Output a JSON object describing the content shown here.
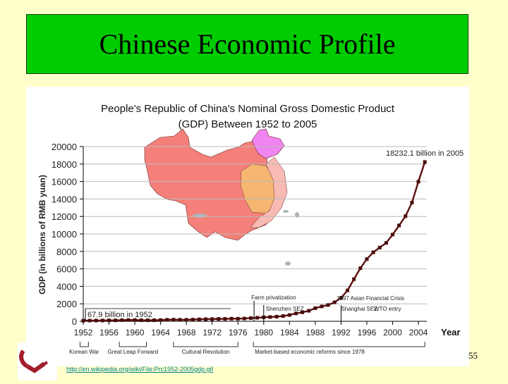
{
  "slide": {
    "title": "Chinese Economic Profile",
    "page_number": "55",
    "source_link": "http://en.wikipedia.org/wiki/File:Prc1952-2005gdp.gif",
    "colors": {
      "background": "#FFFFCC",
      "title_box": "#00CC00",
      "line": "#5a1010",
      "link": "#00808a"
    }
  },
  "chart": {
    "title_line1": "People's Republic of China's Nominal Gross Domestic Product",
    "title_line2": "(GDP) Between 1952 to 2005",
    "ylabel": "GDP (in billions of RMB yuan)",
    "xlabel": "Year",
    "y_ticks": [
      "20000",
      "18000",
      "16000",
      "14000",
      "12000",
      "10000",
      "8000",
      "6000",
      "4000",
      "2000",
      "0"
    ],
    "x_ticks": [
      "1952",
      "1956",
      "1960",
      "1964",
      "1968",
      "1972",
      "1976",
      "1980",
      "1984",
      "1988",
      "1992",
      "1996",
      "2000",
      "2004"
    ],
    "annotations": {
      "end_label": "18232.1 billion in 2005",
      "start_label": "67.9 billion in 1952",
      "farm": "Farm privatization",
      "shenzhen": "Shenzhen SEZ",
      "asian_crisis": "1997 Asian Financial Crisis",
      "shanghai": "Shanghai SEZ",
      "wto": "WTO entry"
    },
    "periods": [
      "Korean War",
      "Great Leap Forward",
      "Cultural Revolution",
      "Market-based economic reforms since 1978"
    ]
  },
  "chart_data": {
    "type": "line",
    "title": "People's Republic of China's Nominal Gross Domestic Product (GDP) Between 1952 to 2005",
    "xlabel": "Year",
    "ylabel": "GDP (in billions of RMB yuan)",
    "ylim": [
      0,
      20000
    ],
    "grid": true,
    "legend": "none",
    "x": [
      1952,
      1953,
      1954,
      1955,
      1956,
      1957,
      1958,
      1959,
      1960,
      1961,
      1962,
      1963,
      1964,
      1965,
      1966,
      1967,
      1968,
      1969,
      1970,
      1971,
      1972,
      1973,
      1974,
      1975,
      1976,
      1977,
      1978,
      1979,
      1980,
      1981,
      1982,
      1983,
      1984,
      1985,
      1986,
      1987,
      1988,
      1989,
      1990,
      1991,
      1992,
      1993,
      1994,
      1995,
      1996,
      1997,
      1998,
      1999,
      2000,
      2001,
      2002,
      2003,
      2004,
      2005
    ],
    "series": [
      {
        "name": "Nominal GDP",
        "values": [
          68,
          82,
          86,
          91,
          103,
          107,
          131,
          144,
          146,
          122,
          115,
          123,
          145,
          172,
          187,
          177,
          172,
          194,
          225,
          243,
          252,
          272,
          276,
          300,
          294,
          320,
          365,
          406,
          455,
          489,
          532,
          596,
          721,
          902,
          1028,
          1206,
          1504,
          1700,
          1867,
          2178,
          2692,
          3533,
          4820,
          6079,
          7118,
          7897,
          8440,
          8968,
          9921,
          10966,
          12033,
          13582,
          15988,
          18232
        ]
      }
    ],
    "annotations": [
      "67.9 billion in 1952",
      "18232.1 billion in 2005",
      "Farm privatization",
      "Shenzhen SEZ",
      "Shanghai SEZ",
      "1997 Asian Financial Crisis",
      "WTO entry"
    ],
    "periods": [
      {
        "label": "Korean War",
        "from": 1950,
        "to": 1953
      },
      {
        "label": "Great Leap Forward",
        "from": 1958,
        "to": 1962
      },
      {
        "label": "Cultural Revolution",
        "from": 1966,
        "to": 1976
      },
      {
        "label": "Market-based economic reforms since 1978",
        "from": 1978,
        "to": 2005
      }
    ]
  }
}
